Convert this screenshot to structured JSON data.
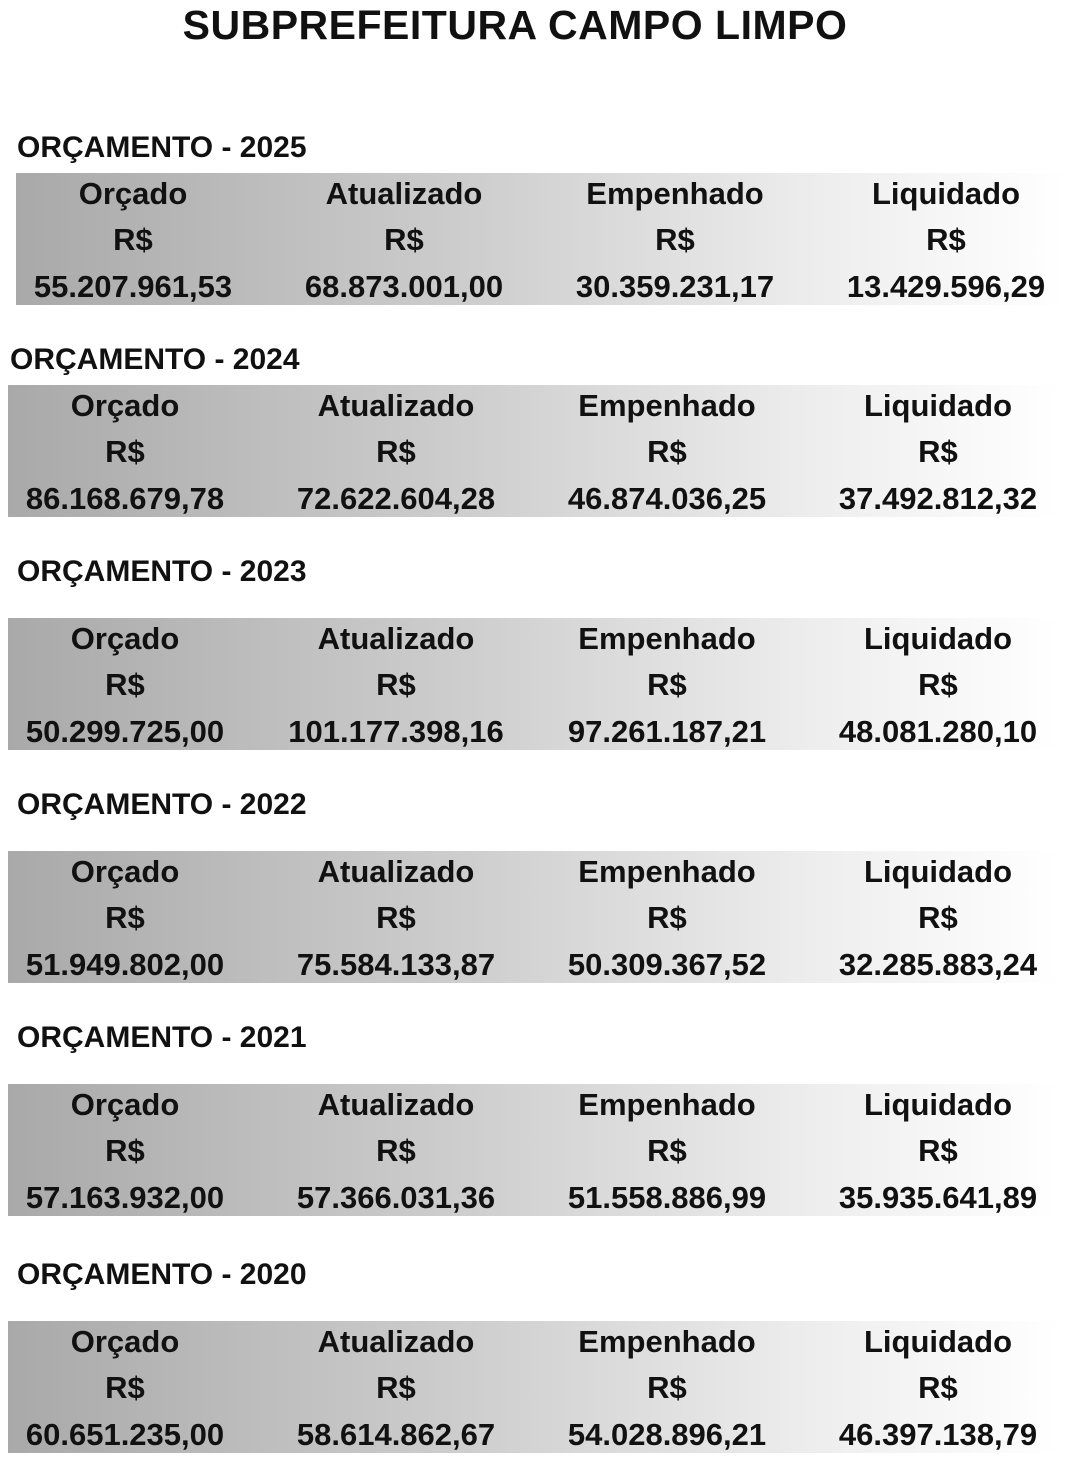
{
  "title": "SUBPREFEITURA CAMPO LIMPO",
  "columns": [
    "Orçado",
    "Atualizado",
    "Empenhado",
    "Liquidado"
  ],
  "currency": "R$",
  "colors": {
    "gradient_start": "#a9a9a9",
    "gradient_end": "#ffffff",
    "text": "#111111"
  },
  "sections": [
    {
      "label": "ORÇAMENTO - 2025",
      "values": [
        "55.207.961,53",
        "68.873.001,00",
        "30.359.231,17",
        "13.429.596,29"
      ]
    },
    {
      "label": "ORÇAMENTO - 2024",
      "values": [
        "86.168.679,78",
        "72.622.604,28",
        "46.874.036,25",
        "37.492.812,32"
      ]
    },
    {
      "label": "ORÇAMENTO - 2023",
      "values": [
        "50.299.725,00",
        "101.177.398,16",
        "97.261.187,21",
        "48.081.280,10"
      ]
    },
    {
      "label": "ORÇAMENTO - 2022",
      "values": [
        "51.949.802,00",
        "75.584.133,87",
        "50.309.367,52",
        "32.285.883,24"
      ]
    },
    {
      "label": "ORÇAMENTO - 2021",
      "values": [
        "57.163.932,00",
        "57.366.031,36",
        "51.558.886,99",
        "35.935.641,89"
      ]
    },
    {
      "label": "ORÇAMENTO - 2020",
      "values": [
        "60.651.235,00",
        "58.614.862,67",
        "54.028.896,21",
        "46.397.138,79"
      ]
    }
  ]
}
